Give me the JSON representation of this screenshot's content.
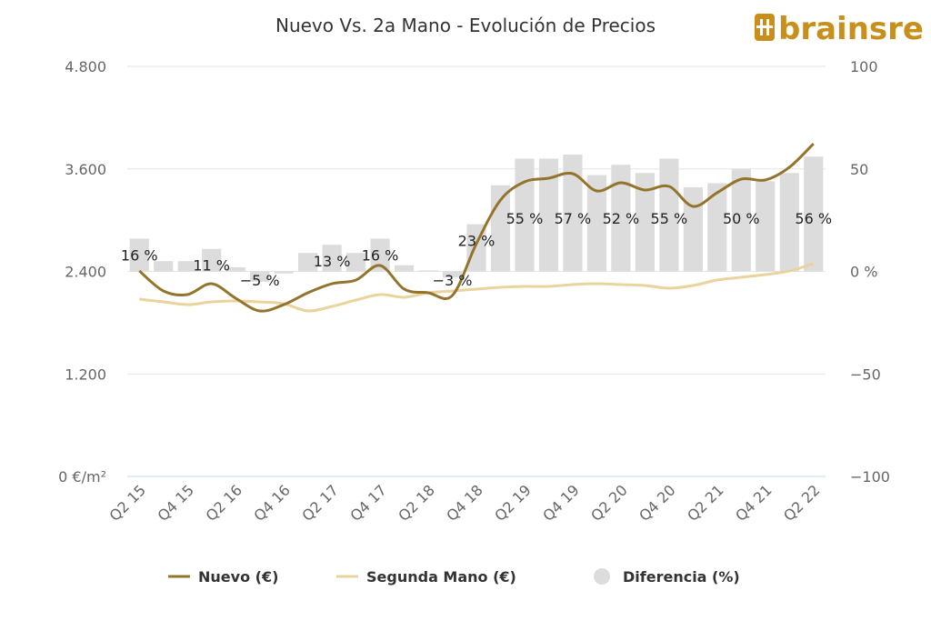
{
  "brand": {
    "name": "brainsre",
    "color": "#c88f1c"
  },
  "chart_data": {
    "type": "bar+line",
    "title": "Nuevo Vs. 2a Mano - Evolución de Precios",
    "categories": [
      "Q2 15",
      "Q3 15",
      "Q4 15",
      "Q1 16",
      "Q2 16",
      "Q3 16",
      "Q4 16",
      "Q1 17",
      "Q2 17",
      "Q3 17",
      "Q4 17",
      "Q1 18",
      "Q2 18",
      "Q3 18",
      "Q4 18",
      "Q1 19",
      "Q2 19",
      "Q3 19",
      "Q4 19",
      "Q1 20",
      "Q2 20",
      "Q3 20",
      "Q4 20",
      "Q1 21",
      "Q2 21",
      "Q3 21",
      "Q4 21",
      "Q1 22",
      "Q2 22"
    ],
    "x_tick_labels": [
      "Q2 15",
      "Q4 15",
      "Q2 16",
      "Q4 16",
      "Q2 17",
      "Q4 17",
      "Q2 18",
      "Q4 18",
      "Q2 19",
      "Q4 19",
      "Q2 20",
      "Q4 20",
      "Q2 21",
      "Q4 21",
      "Q2 22"
    ],
    "y_left": {
      "ticks": [
        0,
        1200,
        2400,
        3600,
        4800
      ],
      "tick_labels": [
        "0 €/m²",
        "1.200",
        "2.400",
        "3.600",
        "4.800"
      ],
      "range": [
        0,
        4800
      ]
    },
    "y_right": {
      "ticks": [
        -100,
        -50,
        0,
        50,
        100
      ],
      "tick_labels": [
        "−100",
        "−50",
        "0 %",
        "50",
        "100"
      ],
      "range": [
        -100,
        100
      ]
    },
    "grid": true,
    "legend_position": "bottom",
    "series": [
      {
        "name": "Nuevo (€)",
        "type": "line",
        "axis": "left",
        "color": "#94742c",
        "values": [
          2405,
          2171,
          2129,
          2256,
          2086,
          1937,
          2011,
          2150,
          2256,
          2299,
          2469,
          2193,
          2150,
          2118,
          2725,
          3235,
          3448,
          3491,
          3544,
          3342,
          3438,
          3353,
          3395,
          3161,
          3321,
          3480,
          3470,
          3619,
          3895
        ]
      },
      {
        "name": "Segunda Mano (€)",
        "type": "line",
        "axis": "left",
        "color": "#e8d49c",
        "values": [
          2075,
          2043,
          2011,
          2043,
          2054,
          2043,
          2022,
          1937,
          1990,
          2065,
          2129,
          2097,
          2150,
          2171,
          2193,
          2214,
          2224,
          2224,
          2246,
          2256,
          2246,
          2235,
          2203,
          2235,
          2299,
          2331,
          2363,
          2405,
          2490
        ]
      },
      {
        "name": "Diferencia (%)",
        "type": "bar",
        "axis": "right",
        "color": "#dcdcdc",
        "values": [
          16,
          5,
          5,
          11,
          2,
          -5,
          -1,
          9,
          13,
          9,
          16,
          3,
          0.5,
          -3,
          23,
          42,
          55,
          55,
          57,
          47,
          52,
          48,
          55,
          41,
          43,
          50,
          44,
          48,
          56
        ]
      }
    ],
    "data_labels": [
      {
        "index": 0,
        "text": "16 %"
      },
      {
        "index": 3,
        "text": "11 %"
      },
      {
        "index": 5,
        "text": "−5 %"
      },
      {
        "index": 8,
        "text": "13 %"
      },
      {
        "index": 10,
        "text": "16 %"
      },
      {
        "index": 13,
        "text": "−3 %"
      },
      {
        "index": 14,
        "text": "23 %"
      },
      {
        "index": 16,
        "text": "55 %"
      },
      {
        "index": 18,
        "text": "57 %"
      },
      {
        "index": 20,
        "text": "52 %"
      },
      {
        "index": 22,
        "text": "55 %"
      },
      {
        "index": 25,
        "text": "50 %"
      },
      {
        "index": 28,
        "text": "56 %"
      }
    ]
  }
}
